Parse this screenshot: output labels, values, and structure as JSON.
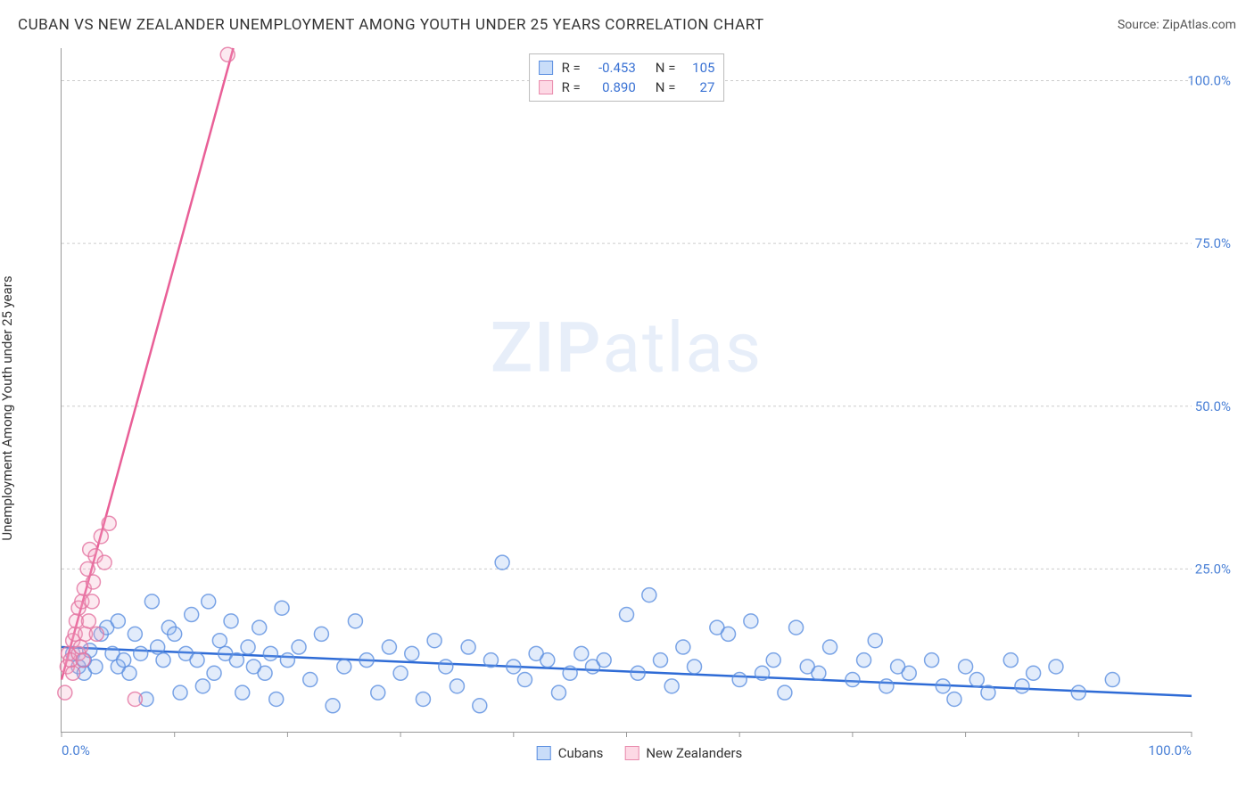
{
  "title": "CUBAN VS NEW ZEALANDER UNEMPLOYMENT AMONG YOUTH UNDER 25 YEARS CORRELATION CHART",
  "source": "Source: ZipAtlas.com",
  "ylabel": "Unemployment Among Youth under 25 years",
  "watermark": {
    "bold": "ZIP",
    "rest": "atlas"
  },
  "chart": {
    "type": "scatter",
    "background_color": "#ffffff",
    "grid_color": "#cccccc",
    "axis_color": "#999999",
    "xlim": [
      0,
      100
    ],
    "ylim": [
      0,
      105
    ],
    "x_ticks": [
      0,
      10,
      20,
      30,
      40,
      50,
      60,
      70,
      80,
      90,
      100
    ],
    "x_tick_labels": {
      "0": "0.0%",
      "100": "100.0%"
    },
    "y_ticks": [
      25,
      50,
      75,
      100
    ],
    "y_tick_labels": {
      "25": "25.0%",
      "50": "50.0%",
      "75": "75.0%",
      "100": "100.0%"
    },
    "ytick_label_color": "#4a80d6",
    "xtick_label_color": "#4a80d6",
    "marker_radius": 8,
    "series": [
      {
        "name": "Cubans",
        "fill": "#8ab4f0",
        "stroke": "#5b8fe0",
        "R": "-0.453",
        "N": "105",
        "regression": {
          "x1": 0,
          "y1": 13.0,
          "x2": 100,
          "y2": 5.5,
          "color": "#2e6bd6"
        },
        "points": [
          [
            1,
            12
          ],
          [
            1.5,
            10
          ],
          [
            2,
            11
          ],
          [
            2,
            9
          ],
          [
            2.5,
            12.5
          ],
          [
            3,
            10
          ],
          [
            3.5,
            15
          ],
          [
            4,
            16
          ],
          [
            4.5,
            12
          ],
          [
            5,
            17
          ],
          [
            5,
            10
          ],
          [
            5.5,
            11
          ],
          [
            6,
            9
          ],
          [
            6.5,
            15
          ],
          [
            7,
            12
          ],
          [
            7.5,
            5
          ],
          [
            8,
            20
          ],
          [
            8.5,
            13
          ],
          [
            9,
            11
          ],
          [
            9.5,
            16
          ],
          [
            10,
            15
          ],
          [
            10.5,
            6
          ],
          [
            11,
            12
          ],
          [
            11.5,
            18
          ],
          [
            12,
            11
          ],
          [
            12.5,
            7
          ],
          [
            13,
            20
          ],
          [
            13.5,
            9
          ],
          [
            14,
            14
          ],
          [
            14.5,
            12
          ],
          [
            15,
            17
          ],
          [
            15.5,
            11
          ],
          [
            16,
            6
          ],
          [
            16.5,
            13
          ],
          [
            17,
            10
          ],
          [
            17.5,
            16
          ],
          [
            18,
            9
          ],
          [
            18.5,
            12
          ],
          [
            19,
            5
          ],
          [
            19.5,
            19
          ],
          [
            20,
            11
          ],
          [
            21,
            13
          ],
          [
            22,
            8
          ],
          [
            23,
            15
          ],
          [
            24,
            4
          ],
          [
            25,
            10
          ],
          [
            26,
            17
          ],
          [
            27,
            11
          ],
          [
            28,
            6
          ],
          [
            29,
            13
          ],
          [
            30,
            9
          ],
          [
            31,
            12
          ],
          [
            32,
            5
          ],
          [
            33,
            14
          ],
          [
            34,
            10
          ],
          [
            35,
            7
          ],
          [
            36,
            13
          ],
          [
            37,
            4
          ],
          [
            38,
            11
          ],
          [
            39,
            26
          ],
          [
            40,
            10
          ],
          [
            41,
            8
          ],
          [
            42,
            12
          ],
          [
            43,
            11
          ],
          [
            44,
            6
          ],
          [
            45,
            9
          ],
          [
            46,
            12
          ],
          [
            47,
            10
          ],
          [
            48,
            11
          ],
          [
            50,
            18
          ],
          [
            51,
            9
          ],
          [
            52,
            21
          ],
          [
            53,
            11
          ],
          [
            54,
            7
          ],
          [
            55,
            13
          ],
          [
            56,
            10
          ],
          [
            58,
            16
          ],
          [
            59,
            15
          ],
          [
            60,
            8
          ],
          [
            61,
            17
          ],
          [
            62,
            9
          ],
          [
            63,
            11
          ],
          [
            64,
            6
          ],
          [
            65,
            16
          ],
          [
            66,
            10
          ],
          [
            67,
            9
          ],
          [
            68,
            13
          ],
          [
            70,
            8
          ],
          [
            71,
            11
          ],
          [
            72,
            14
          ],
          [
            73,
            7
          ],
          [
            74,
            10
          ],
          [
            75,
            9
          ],
          [
            77,
            11
          ],
          [
            78,
            7
          ],
          [
            79,
            5
          ],
          [
            80,
            10
          ],
          [
            81,
            8
          ],
          [
            82,
            6
          ],
          [
            84,
            11
          ],
          [
            85,
            7
          ],
          [
            86,
            9
          ],
          [
            88,
            10
          ],
          [
            90,
            6
          ],
          [
            93,
            8
          ]
        ]
      },
      {
        "name": "New Zealanders",
        "fill": "#f4a8c2",
        "stroke": "#e373a0",
        "R": "0.890",
        "N": "27",
        "regression": {
          "x1": 0,
          "y1": 8,
          "x2": 15.2,
          "y2": 105,
          "color": "#e95f97"
        },
        "points": [
          [
            0.3,
            6
          ],
          [
            0.5,
            10
          ],
          [
            0.6,
            12
          ],
          [
            0.8,
            11
          ],
          [
            1.0,
            14
          ],
          [
            1.0,
            9
          ],
          [
            1.2,
            15
          ],
          [
            1.3,
            17
          ],
          [
            1.5,
            12
          ],
          [
            1.5,
            19
          ],
          [
            1.7,
            13
          ],
          [
            1.8,
            20
          ],
          [
            1.9,
            11
          ],
          [
            2.0,
            22
          ],
          [
            2.1,
            15
          ],
          [
            2.3,
            25
          ],
          [
            2.4,
            17
          ],
          [
            2.5,
            28
          ],
          [
            2.7,
            20
          ],
          [
            2.8,
            23
          ],
          [
            3.0,
            27
          ],
          [
            3.1,
            15
          ],
          [
            3.5,
            30
          ],
          [
            3.8,
            26
          ],
          [
            4.2,
            32
          ],
          [
            6.5,
            5
          ],
          [
            14.7,
            104
          ]
        ]
      }
    ]
  },
  "legend": {
    "items": [
      "Cubans",
      "New Zealanders"
    ]
  },
  "stats_labels": {
    "R": "R =",
    "N": "N ="
  }
}
